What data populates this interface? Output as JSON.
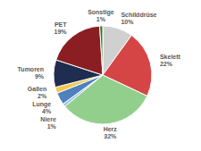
{
  "chart_data": {
    "type": "pie",
    "categories": [
      "Schilddrüse",
      "Skelett",
      "Herz",
      "Niere",
      "Lunge",
      "Gallen",
      "Tumoren",
      "PET",
      "Sonstige"
    ],
    "values": [
      10,
      22,
      32,
      1,
      4,
      2,
      9,
      19,
      1
    ],
    "value_labels": [
      "10%",
      "22%",
      "32%",
      "1%",
      "4%",
      "2%",
      "9%",
      "19%",
      "1%"
    ],
    "colors": [
      "#d0d0d0",
      "#d64545",
      "#93cf8c",
      "#9cc3e6",
      "#4f81bd",
      "#f2c94c",
      "#1f2d50",
      "#8b1e22",
      "#2e7d32"
    ],
    "data_labels": true
  }
}
